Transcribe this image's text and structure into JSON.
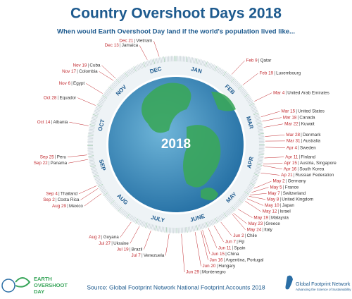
{
  "chart_data": {
    "type": "radial-dates",
    "title": "Country Overshoot Days 2018",
    "subtitle": "When would Earth Overshoot Day  land if the world's population lived like...",
    "center_label": "2018",
    "months": [
      "JAN",
      "FEB",
      "MAR",
      "APR",
      "MAY",
      "JUNE",
      "JULY",
      "AUG",
      "SEP",
      "OCT",
      "NOV",
      "DEC"
    ],
    "countries": [
      {
        "date": "Feb 9",
        "name": "Qatar"
      },
      {
        "date": "Feb 19",
        "name": "Luxembourg"
      },
      {
        "date": "Mar 4",
        "name": "United Arab Emirates"
      },
      {
        "date": "Mar 15",
        "name": "United States"
      },
      {
        "date": "Mar 18",
        "name": "Canada"
      },
      {
        "date": "Mar 22",
        "name": "Kuwait"
      },
      {
        "date": "Mar 28",
        "name": "Denmark"
      },
      {
        "date": "Mar 31",
        "name": "Australia"
      },
      {
        "date": "Apr 4",
        "name": "Sweden"
      },
      {
        "date": "Apr 11",
        "name": "Finland"
      },
      {
        "date": "Apr 15",
        "name": "Austria, Singapore"
      },
      {
        "date": "Apr 16",
        "name": "South Korea"
      },
      {
        "date": "Ap 21",
        "name": "Russian Federation"
      },
      {
        "date": "May 2",
        "name": "Germany"
      },
      {
        "date": "May 5",
        "name": "France"
      },
      {
        "date": "May 7",
        "name": "Switzerland"
      },
      {
        "date": "May 8",
        "name": "United Kingdom"
      },
      {
        "date": "May 10",
        "name": "Japan"
      },
      {
        "date": "May 12",
        "name": "Israel"
      },
      {
        "date": "May 19",
        "name": "Malaysia"
      },
      {
        "date": "May 23",
        "name": "Greece"
      },
      {
        "date": "May 24",
        "name": "Italy"
      },
      {
        "date": "Jun 2",
        "name": "Chile"
      },
      {
        "date": "Jun 7",
        "name": "Fiji"
      },
      {
        "date": "Jun 11",
        "name": "Spain"
      },
      {
        "date": "Jun 15",
        "name": "China"
      },
      {
        "date": "Jun 16",
        "name": "Argentina, Portugal"
      },
      {
        "date": "Jun 20",
        "name": "Hungary"
      },
      {
        "date": "Jun 29",
        "name": "Montenegro"
      },
      {
        "date": "Jul 7",
        "name": "Venezuela"
      },
      {
        "date": "Jul 19",
        "name": "Brazil"
      },
      {
        "date": "Jul 27",
        "name": "Ukraine"
      },
      {
        "date": "Aug 2",
        "name": "Guyana"
      },
      {
        "date": "Aug 29",
        "name": "Mexico"
      },
      {
        "date": "Sep 2",
        "name": "Costa Rica"
      },
      {
        "date": "Sep 4",
        "name": "Thailand"
      },
      {
        "date": "Sep 22",
        "name": "Panama"
      },
      {
        "date": "Sep 25",
        "name": "Peru"
      },
      {
        "date": "Oct 14",
        "name": "Albania"
      },
      {
        "date": "Oct 28",
        "name": "Equador"
      },
      {
        "date": "Nov 6",
        "name": "Egypt"
      },
      {
        "date": "Nov 17",
        "name": "Colombia"
      },
      {
        "date": "Nov 19",
        "name": "Cuba"
      },
      {
        "date": "Dec 13",
        "name": "Jamaica"
      },
      {
        "date": "Dec 21",
        "name": "Vietnam"
      }
    ],
    "source": "Source: Global Footprint Network National Footprint Accounts 2018",
    "logo_left": [
      "EARTH",
      "OVERSHOOT",
      "DAY"
    ],
    "logo_right": [
      "Global Footprint Network",
      "Advancing the Science of Sustainability"
    ]
  }
}
